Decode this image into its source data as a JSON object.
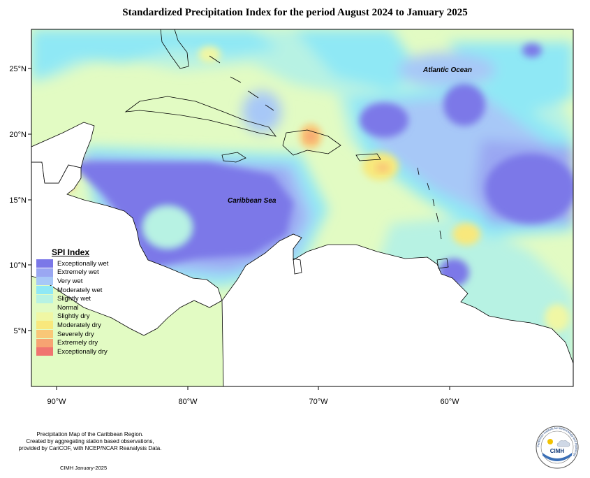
{
  "title": "Standardized Precipitation Index for the period August 2024 to January 2025",
  "map": {
    "lat_labels": [
      "25°N",
      "20°N",
      "15°N",
      "10°N",
      "5°N"
    ],
    "lon_labels": [
      "90°W",
      "80°W",
      "70°W",
      "60°W"
    ],
    "places": {
      "atlantic": "Atlantic Ocean",
      "caribbean": "Caribbean Sea"
    }
  },
  "legend": {
    "title": "SPI Index",
    "items": [
      {
        "label": "Exceptionally wet",
        "color": "#7b78e8"
      },
      {
        "label": "Extremely wet",
        "color": "#9aa7f2"
      },
      {
        "label": "Very wet",
        "color": "#a7c8f7"
      },
      {
        "label": "Moderately wet",
        "color": "#8fe8f5"
      },
      {
        "label": "Slightly wet",
        "color": "#b7f2e3"
      },
      {
        "label": "Normal",
        "color": "#e2fbc3"
      },
      {
        "label": "Slightly dry",
        "color": "#f0f7a4"
      },
      {
        "label": "Moderately dry",
        "color": "#f8e87c"
      },
      {
        "label": "Severely dry",
        "color": "#f9c777"
      },
      {
        "label": "Extremely dry",
        "color": "#f7a372"
      },
      {
        "label": "Exceptionally dry",
        "color": "#f07470"
      }
    ]
  },
  "credits": {
    "lines": [
      "Precipitation Map of the Caribbean Region.",
      "Created by aggregating station based observations,",
      "provided by CariCOF, with NCEP/NCAR Reanalysis Data."
    ],
    "date": "CIMH January-2025",
    "logo_text": "CIMH",
    "logo_ring": "Caribbean Institute for Meteorology and Hydrology"
  }
}
